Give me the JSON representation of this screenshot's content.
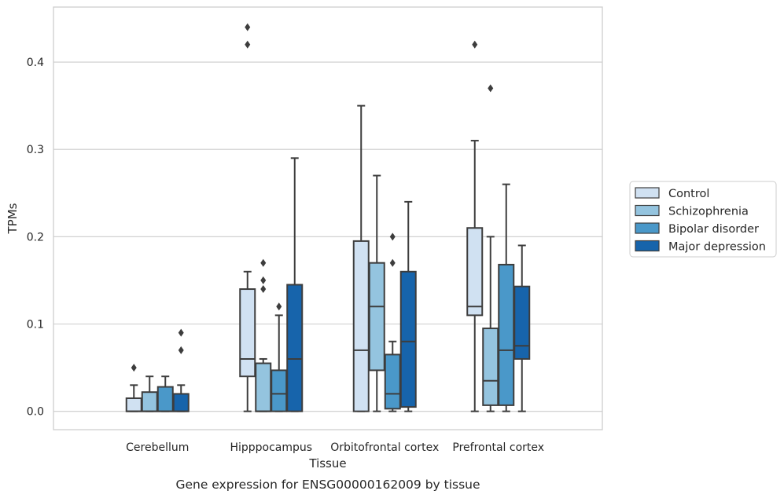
{
  "caption": "Gene expression for ENSG00000162009 by tissue",
  "chart_data": {
    "type": "box",
    "xlabel": "Tissue",
    "ylabel": "TPMs",
    "ylim": [
      -0.021,
      0.463
    ],
    "yticks": [
      0.0,
      0.1,
      0.2,
      0.3,
      0.4
    ],
    "ytick_labels": [
      "0.0",
      "0.1",
      "0.2",
      "0.3",
      "0.4"
    ],
    "grid": "horizontal",
    "legend_position": "right",
    "categories": [
      "Cerebellum",
      "Hipppocampus",
      "Orbitofrontal cortex",
      "Prefrontal cortex"
    ],
    "colors": [
      "#d0e1f2",
      "#94c4df",
      "#4a98c9",
      "#1764ab"
    ],
    "series": [
      {
        "name": "Control",
        "boxes": [
          {
            "whislo": 0.0,
            "q1": 0.0,
            "med": 0.0,
            "q3": 0.015,
            "whishi": 0.03,
            "fliers": [
              0.05
            ]
          },
          {
            "whislo": 0.0,
            "q1": 0.04,
            "med": 0.06,
            "q3": 0.14,
            "whishi": 0.16,
            "fliers": [
              0.42,
              0.44
            ]
          },
          {
            "whislo": 0.0,
            "q1": 0.0,
            "med": 0.07,
            "q3": 0.195,
            "whishi": 0.35,
            "fliers": []
          },
          {
            "whislo": 0.0,
            "q1": 0.11,
            "med": 0.12,
            "q3": 0.21,
            "whishi": 0.31,
            "fliers": [
              0.42
            ]
          }
        ]
      },
      {
        "name": "Schizophrenia",
        "boxes": [
          {
            "whislo": 0.0,
            "q1": 0.0,
            "med": 0.0,
            "q3": 0.022,
            "whishi": 0.04,
            "fliers": []
          },
          {
            "whislo": 0.0,
            "q1": 0.0,
            "med": 0.0,
            "q3": 0.055,
            "whishi": 0.06,
            "fliers": [
              0.14,
              0.15,
              0.17
            ]
          },
          {
            "whislo": 0.0,
            "q1": 0.047,
            "med": 0.12,
            "q3": 0.17,
            "whishi": 0.27,
            "fliers": []
          },
          {
            "whislo": 0.0,
            "q1": 0.007,
            "med": 0.035,
            "q3": 0.095,
            "whishi": 0.2,
            "fliers": [
              0.37
            ]
          }
        ]
      },
      {
        "name": "Bipolar disorder",
        "boxes": [
          {
            "whislo": 0.0,
            "q1": 0.0,
            "med": 0.0,
            "q3": 0.028,
            "whishi": 0.04,
            "fliers": []
          },
          {
            "whislo": 0.0,
            "q1": 0.0,
            "med": 0.02,
            "q3": 0.047,
            "whishi": 0.11,
            "fliers": [
              0.12
            ]
          },
          {
            "whislo": 0.0,
            "q1": 0.003,
            "med": 0.02,
            "q3": 0.065,
            "whishi": 0.08,
            "fliers": [
              0.17,
              0.2
            ]
          },
          {
            "whislo": 0.0,
            "q1": 0.007,
            "med": 0.07,
            "q3": 0.168,
            "whishi": 0.26,
            "fliers": []
          }
        ]
      },
      {
        "name": "Major depression",
        "boxes": [
          {
            "whislo": 0.0,
            "q1": 0.0,
            "med": 0.0,
            "q3": 0.02,
            "whishi": 0.03,
            "fliers": [
              0.07,
              0.09
            ]
          },
          {
            "whislo": 0.0,
            "q1": 0.0,
            "med": 0.06,
            "q3": 0.145,
            "whishi": 0.29,
            "fliers": []
          },
          {
            "whislo": 0.0,
            "q1": 0.005,
            "med": 0.08,
            "q3": 0.16,
            "whishi": 0.24,
            "fliers": []
          },
          {
            "whislo": 0.0,
            "q1": 0.06,
            "med": 0.075,
            "q3": 0.143,
            "whishi": 0.19,
            "fliers": []
          }
        ]
      }
    ]
  }
}
